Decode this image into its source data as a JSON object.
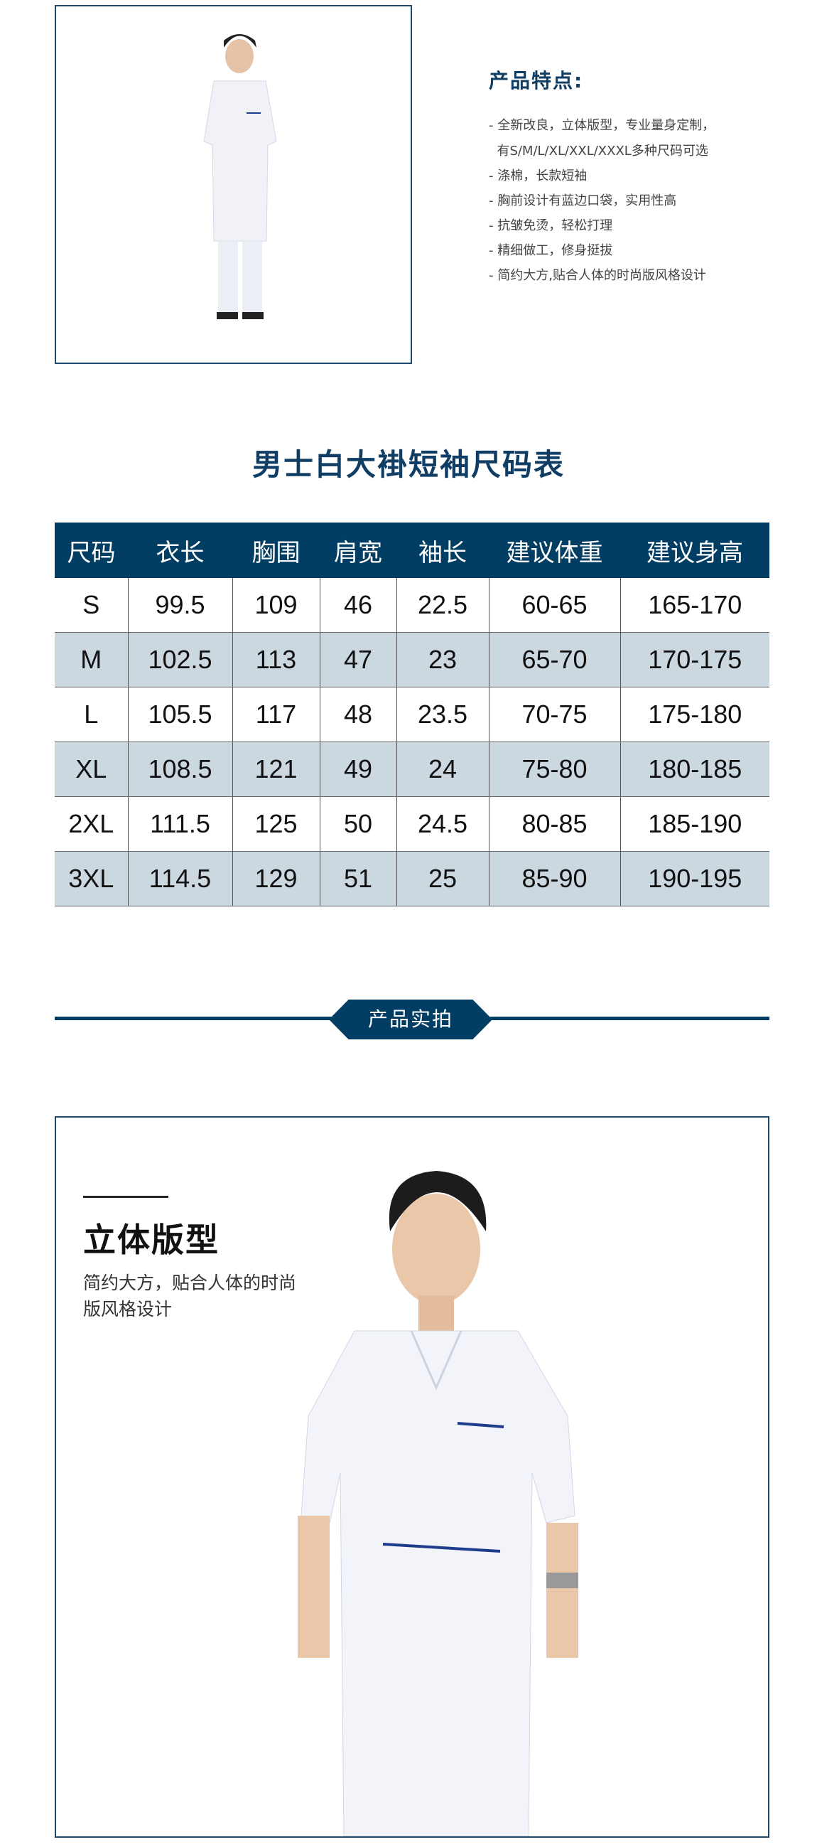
{
  "features": {
    "title": "产品特点:",
    "items": [
      "- 全新改良，立体版型，专业量身定制，",
      "  有S/M/L/XL/XXL/XXXL多种尺码可选",
      "- 涤棉，长款短袖",
      "- 胸前设计有蓝边口袋，实用性高",
      "- 抗皱免烫，轻松打理",
      "- 精细做工，修身挺拔",
      "- 简约大方,贴合人体的时尚版风格设计"
    ]
  },
  "size_table": {
    "title": "男士白大褂短袖尺码表",
    "headers": [
      "尺码",
      "衣长",
      "胸围",
      "肩宽",
      "袖长",
      "建议体重",
      "建议身高"
    ],
    "rows": [
      [
        "S",
        "99.5",
        "109",
        "46",
        "22.5",
        "60-65",
        "165-170"
      ],
      [
        "M",
        "102.5",
        "113",
        "47",
        "23",
        "65-70",
        "170-175"
      ],
      [
        "L",
        "105.5",
        "117",
        "48",
        "23.5",
        "70-75",
        "175-180"
      ],
      [
        "XL",
        "108.5",
        "121",
        "49",
        "24",
        "75-80",
        "180-185"
      ],
      [
        "2XL",
        "111.5",
        "125",
        "50",
        "24.5",
        "80-85",
        "185-190"
      ],
      [
        "3XL",
        "114.5",
        "129",
        "51",
        "25",
        "85-90",
        "190-195"
      ]
    ]
  },
  "section": {
    "label": "产品实拍"
  },
  "detail": {
    "heading": "立体版型",
    "lines": [
      "简约大方，贴合人体的时尚",
      "版风格设计"
    ]
  },
  "colors": {
    "navy": "#023d63",
    "stripe": "#ccd8e0"
  }
}
